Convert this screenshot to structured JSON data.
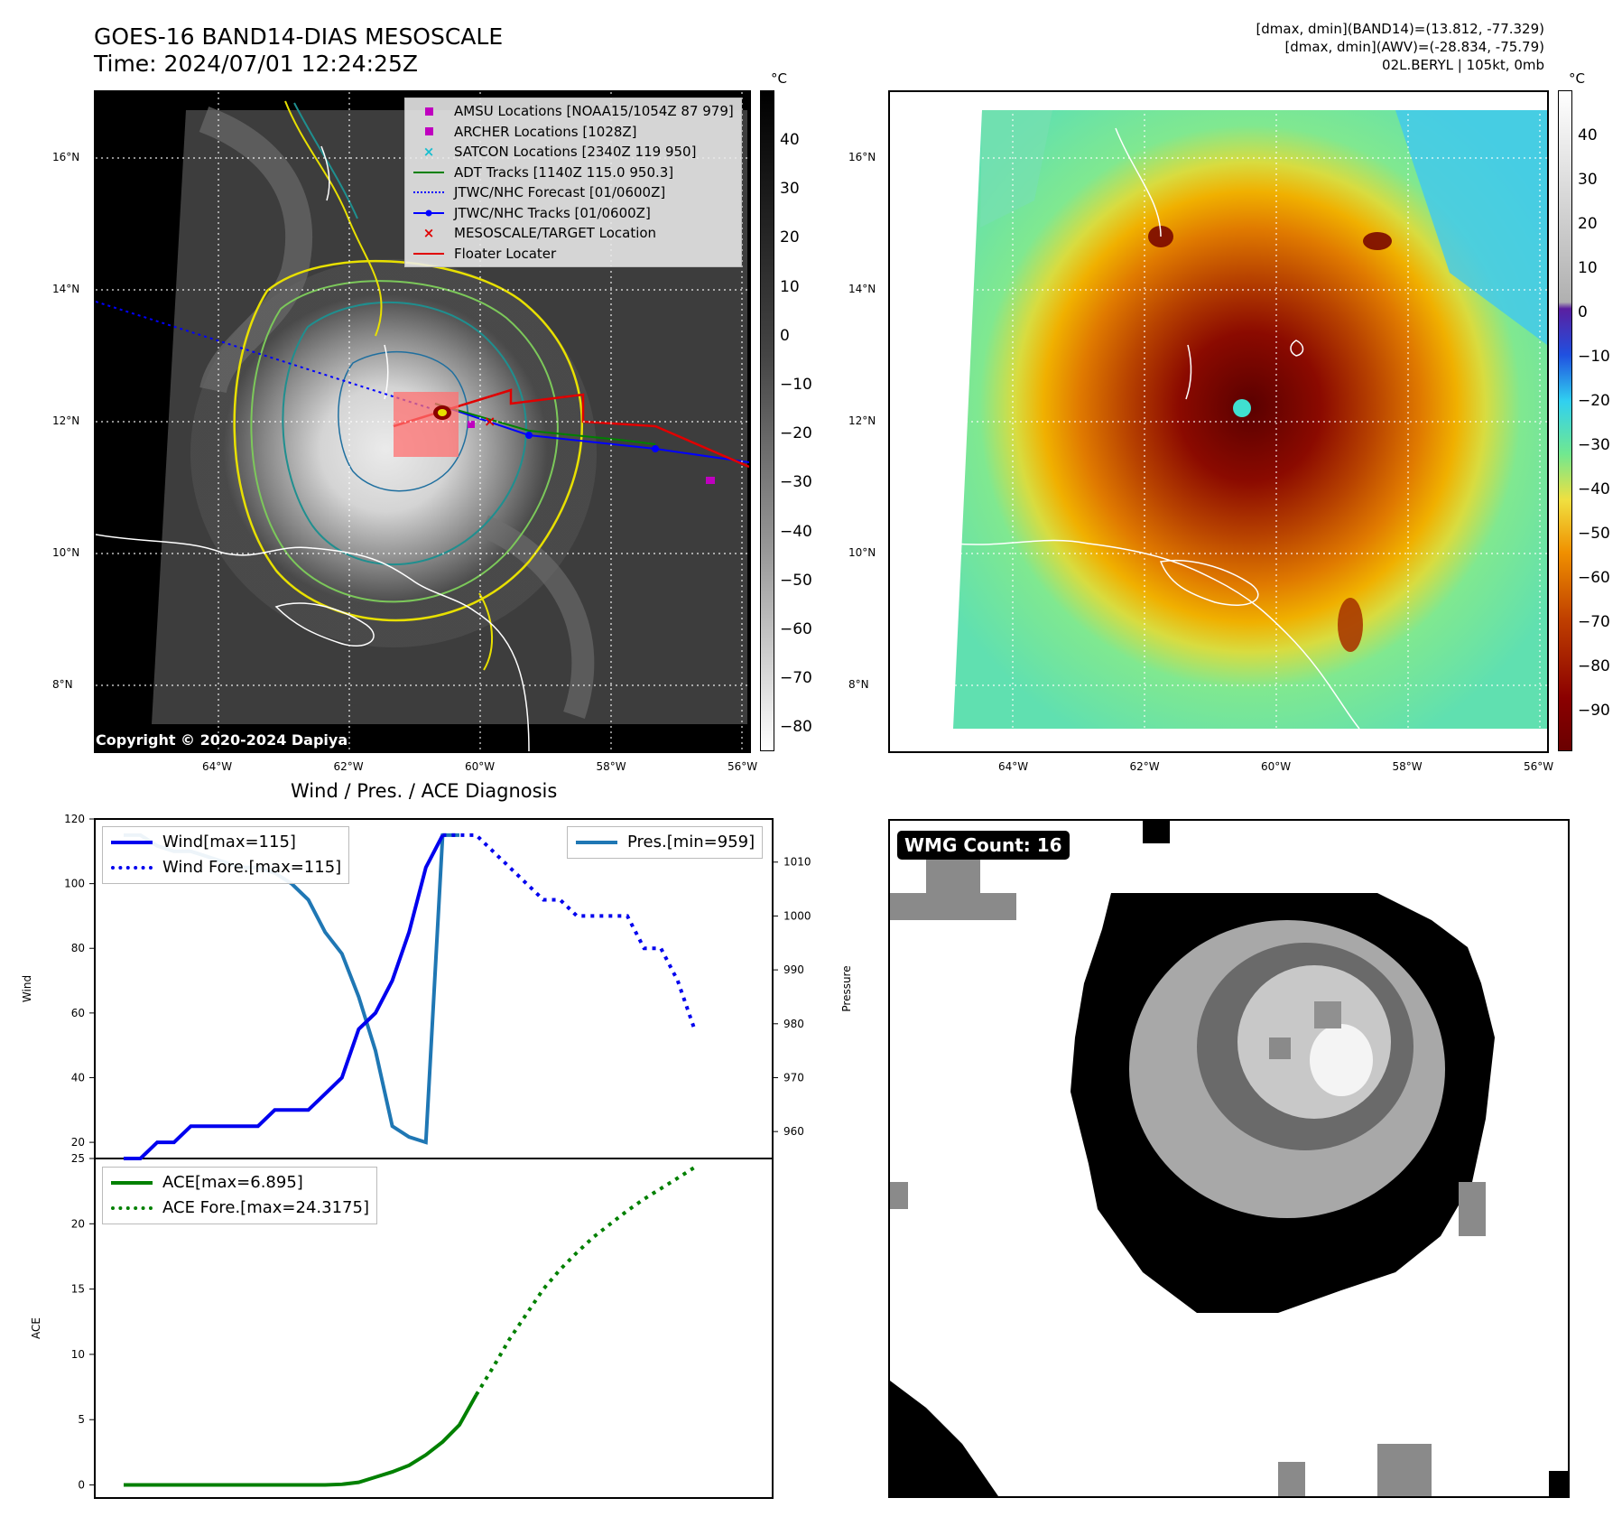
{
  "header": {
    "title_line1": "GOES-16 BAND14-DIAS MESOSCALE",
    "title_line2": "Time: 2024/07/01 12:24:25Z",
    "info_line1": "[dmax, dmin](BAND14)=(13.812, -77.329)",
    "info_line2": "[dmax, dmin](AWV)=(-28.834, -75.79)",
    "info_line3": "02L.BERYL | 105kt, 0mb"
  },
  "map_left": {
    "legend": [
      {
        "label": "AMSU Locations [NOAA15/1054Z 87 979]",
        "marker": "square",
        "color": "#bf00bf"
      },
      {
        "label": "ARCHER Locations [1028Z]",
        "marker": "square",
        "color": "#bf00bf"
      },
      {
        "label": "SATCON Locations [2340Z 119 950]",
        "marker": "x",
        "color": "#17becf"
      },
      {
        "label": "ADT Tracks [1140Z 115.0 950.3]",
        "marker": "line",
        "color": "#008000"
      },
      {
        "label": "JTWC/NHC Forecast [01/0600Z]",
        "marker": "dotted",
        "color": "#0000ff"
      },
      {
        "label": "JTWC/NHC Tracks [01/0600Z]",
        "marker": "line-dot",
        "color": "#0000ff"
      },
      {
        "label": "MESOSCALE/TARGET Location",
        "marker": "x",
        "color": "#e00000"
      },
      {
        "label": "Floater Locater",
        "marker": "line",
        "color": "#e00000"
      }
    ],
    "copyright": "Copyright © 2020-2024 Dapiya",
    "colorbar_unit": "°C",
    "colorbar_ticks": [
      "40",
      "30",
      "20",
      "10",
      "0",
      "−10",
      "−20",
      "−30",
      "−40",
      "−50",
      "−60",
      "−70",
      "−80"
    ]
  },
  "map_right": {
    "colorbar_unit": "°C",
    "colorbar_ticks": [
      "40",
      "30",
      "20",
      "10",
      "0",
      "−10",
      "−20",
      "−30",
      "−40",
      "−50",
      "−60",
      "−70",
      "−80",
      "−90"
    ]
  },
  "lat_labels": [
    "16°N",
    "14°N",
    "12°N",
    "10°N",
    "8°N"
  ],
  "lon_labels": [
    "64°W",
    "62°W",
    "60°W",
    "58°W",
    "56°W"
  ],
  "diagnosis": {
    "title": "Wind / Pres. / ACE Diagnosis",
    "wind_ylabel": "Wind",
    "pres_ylabel": "Pressure",
    "ace_ylabel": "ACE",
    "wind_legend": [
      "Wind[max=115]",
      "Wind Fore.[max=115]"
    ],
    "pres_legend": [
      "Pres.[min=959]"
    ],
    "ace_legend": [
      "ACE[max=6.895]",
      "ACE Fore.[max=24.3175]"
    ],
    "wind_ticks": [
      "20",
      "40",
      "60",
      "80",
      "100",
      "120"
    ],
    "pres_ticks": [
      "960",
      "970",
      "980",
      "990",
      "1000",
      "1010"
    ],
    "ace_ticks": [
      "0",
      "5",
      "10",
      "15",
      "20",
      "25"
    ]
  },
  "wmg": {
    "label": "WMG Count: 16"
  },
  "chart_data": [
    {
      "type": "line",
      "title": "Wind / Pres. / ACE Diagnosis",
      "ylabel": "Wind",
      "ylim": [
        15,
        120
      ],
      "series": [
        {
          "name": "Wind[max=115]",
          "x": [
            0,
            1,
            2,
            3,
            4,
            5,
            6,
            7,
            8,
            9,
            10,
            11,
            12,
            13,
            14,
            15,
            16,
            17,
            18,
            19
          ],
          "values": [
            15,
            15,
            20,
            20,
            25,
            25,
            25,
            25,
            25,
            30,
            30,
            30,
            35,
            40,
            55,
            60,
            70,
            85,
            105,
            115
          ]
        },
        {
          "name": "Wind Fore.[max=115]",
          "x": [
            19,
            20,
            21,
            22,
            23,
            24,
            25,
            26,
            27,
            28,
            29,
            30,
            31,
            32,
            33,
            34
          ],
          "values": [
            115,
            115,
            115,
            110,
            105,
            100,
            95,
            95,
            90,
            90,
            90,
            90,
            80,
            80,
            70,
            55
          ]
        }
      ]
    },
    {
      "type": "line",
      "ylabel": "Pressure",
      "ylim": [
        955,
        1018
      ],
      "series": [
        {
          "name": "Pres.[min=959]",
          "x": [
            0,
            1,
            2,
            3,
            4,
            5,
            6,
            7,
            8,
            9,
            10,
            11,
            12,
            13,
            14,
            15,
            16,
            17,
            18,
            19,
            20
          ],
          "values": [
            1015,
            1015,
            1013,
            1012,
            1012,
            1011,
            1010,
            1009,
            1009,
            1008,
            1006,
            1003,
            997,
            993,
            985,
            975,
            961,
            959,
            958,
            1015,
            1015
          ]
        }
      ]
    },
    {
      "type": "line",
      "ylabel": "ACE",
      "ylim": [
        -1,
        25
      ],
      "series": [
        {
          "name": "ACE[max=6.895]",
          "x": [
            0,
            2,
            4,
            6,
            8,
            10,
            12,
            13,
            14,
            15,
            16,
            17,
            18,
            19,
            20,
            21
          ],
          "values": [
            0,
            0,
            0,
            0,
            0,
            0,
            0,
            0.05,
            0.2,
            0.6,
            1.0,
            1.5,
            2.3,
            3.3,
            4.6,
            6.895
          ]
        },
        {
          "name": "ACE Fore.[max=24.3175]",
          "x": [
            21,
            22,
            23,
            24,
            25,
            26,
            27,
            28,
            29,
            30,
            31,
            32,
            33,
            34
          ],
          "values": [
            6.895,
            9.0,
            11.2,
            13.1,
            15.0,
            16.5,
            17.8,
            19.0,
            20.0,
            21.0,
            21.9,
            22.7,
            23.5,
            24.3175
          ]
        }
      ]
    }
  ]
}
